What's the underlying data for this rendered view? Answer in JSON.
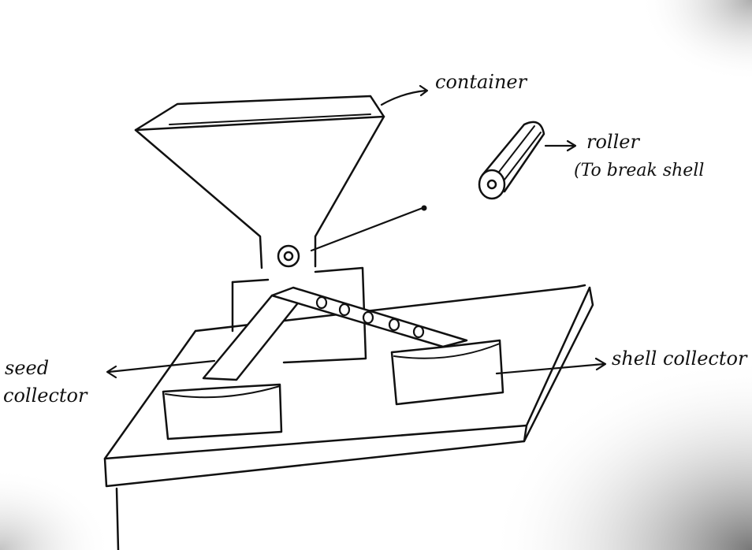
{
  "labels": {
    "container": "container",
    "roller": "roller",
    "roller_note": "(To break shell",
    "seed_collector_line1": "seed",
    "seed_collector_line2": "collector",
    "shell_collector": "shell collector"
  }
}
